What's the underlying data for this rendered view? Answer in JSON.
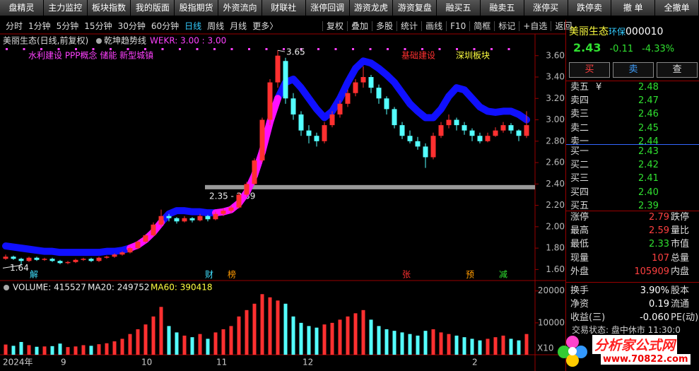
{
  "toolbar": {
    "buttons": [
      "盘精灵",
      "主力监控",
      "板块指数",
      "我的版面",
      "股指期货",
      "外资流向",
      "财联社",
      "涨停回调",
      "游资龙虎",
      "游资复盘",
      "融买五",
      "融卖五",
      "涨停买",
      "跌停卖",
      "撤 单",
      "全撤单"
    ]
  },
  "period_bar": {
    "periods": [
      "分时",
      "1分钟",
      "5分钟",
      "15分钟",
      "30分钟",
      "60分钟",
      "日线",
      "周线",
      "月线",
      "更多〉"
    ],
    "tools": [
      "复权",
      "叠加",
      "多股",
      "统计",
      "画线",
      "F10",
      "简框",
      "标记",
      "+自选",
      "返回"
    ]
  },
  "chart_data": [
    {
      "type": "candlestick",
      "title": "美丽生态(日线,前复权)",
      "indicator": "乾坤趋势线",
      "indicator_value": "WEKR: 3.00 : 3.00",
      "concepts": "水利建设 PPP概念 储能 新型城镇",
      "concept_red": "基础建设",
      "concept_yellow": "深圳板块",
      "up_color": "#ff3030",
      "down_color": "#54ffff",
      "trend_color": "#1010ff",
      "trend_up_color": "#ff10ff",
      "ylim": [
        1.51,
        3.79
      ],
      "yticks": [
        {
          "value": 3.6,
          "label": "3.60"
        },
        {
          "value": 3.4,
          "label": "3.40"
        },
        {
          "value": 3.2,
          "label": "3.20"
        },
        {
          "value": 3.0,
          "label": "3.00"
        },
        {
          "value": 2.8,
          "label": "2.80"
        },
        {
          "value": 2.6,
          "label": "2.60"
        },
        {
          "value": 2.4,
          "label": "2.40"
        },
        {
          "value": 2.2,
          "label": "2.20"
        },
        {
          "value": 2.0,
          "label": "2.00"
        },
        {
          "value": 1.8,
          "label": "1.80"
        },
        {
          "value": 1.6,
          "label": "1.60"
        }
      ],
      "candles": [
        [
          1.7,
          1.74,
          1.69,
          1.72
        ],
        [
          1.72,
          1.73,
          1.69,
          1.7
        ],
        [
          1.7,
          1.71,
          1.64,
          1.68
        ],
        [
          1.68,
          1.72,
          1.67,
          1.71
        ],
        [
          1.71,
          1.72,
          1.68,
          1.69
        ],
        [
          1.69,
          1.71,
          1.68,
          1.7
        ],
        [
          1.7,
          1.71,
          1.67,
          1.68
        ],
        [
          1.68,
          1.69,
          1.65,
          1.66
        ],
        [
          1.66,
          1.68,
          1.65,
          1.67
        ],
        [
          1.67,
          1.7,
          1.66,
          1.69
        ],
        [
          1.69,
          1.71,
          1.68,
          1.7
        ],
        [
          1.7,
          1.71,
          1.67,
          1.68
        ],
        [
          1.68,
          1.72,
          1.67,
          1.71
        ],
        [
          1.71,
          1.73,
          1.7,
          1.72
        ],
        [
          1.72,
          1.75,
          1.71,
          1.74
        ],
        [
          1.74,
          1.77,
          1.73,
          1.76
        ],
        [
          1.76,
          1.81,
          1.75,
          1.8
        ],
        [
          1.8,
          1.87,
          1.79,
          1.86
        ],
        [
          1.86,
          1.93,
          1.85,
          1.92
        ],
        [
          1.92,
          2.04,
          1.91,
          2.02
        ],
        [
          2.02,
          2.16,
          2.0,
          2.1
        ],
        [
          2.1,
          2.12,
          2.05,
          2.08
        ],
        [
          2.08,
          2.09,
          2.03,
          2.05
        ],
        [
          2.05,
          2.1,
          2.04,
          2.08
        ],
        [
          2.08,
          2.09,
          2.04,
          2.06
        ],
        [
          2.06,
          2.12,
          2.05,
          2.1
        ],
        [
          2.1,
          2.11,
          2.05,
          2.07
        ],
        [
          2.07,
          2.14,
          2.06,
          2.12
        ],
        [
          2.12,
          2.17,
          2.1,
          2.15
        ],
        [
          2.15,
          2.2,
          2.13,
          2.18
        ],
        [
          2.18,
          2.32,
          2.17,
          2.3
        ],
        [
          2.3,
          2.42,
          2.28,
          2.4
        ],
        [
          2.4,
          2.64,
          2.39,
          2.62
        ],
        [
          2.62,
          3.02,
          2.6,
          3.0
        ],
        [
          3.0,
          3.38,
          2.95,
          3.35
        ],
        [
          3.35,
          3.65,
          3.3,
          3.6
        ],
        [
          3.55,
          3.58,
          3.15,
          3.2
        ],
        [
          3.2,
          3.25,
          3.0,
          3.05
        ],
        [
          3.05,
          3.08,
          2.85,
          2.9
        ],
        [
          2.9,
          2.95,
          2.78,
          2.85
        ],
        [
          2.85,
          2.88,
          2.75,
          2.8
        ],
        [
          2.8,
          2.98,
          2.78,
          2.95
        ],
        [
          2.95,
          3.08,
          2.93,
          3.05
        ],
        [
          3.05,
          3.18,
          3.02,
          3.15
        ],
        [
          3.15,
          3.28,
          3.12,
          3.25
        ],
        [
          3.25,
          3.38,
          3.22,
          3.35
        ],
        [
          3.35,
          3.5,
          3.3,
          3.4
        ],
        [
          3.4,
          3.42,
          3.25,
          3.3
        ],
        [
          3.3,
          3.33,
          3.15,
          3.2
        ],
        [
          3.2,
          3.22,
          3.05,
          3.1
        ],
        [
          3.1,
          3.12,
          2.92,
          2.95
        ],
        [
          2.95,
          2.98,
          2.82,
          2.85
        ],
        [
          2.85,
          2.9,
          2.78,
          2.8
        ],
        [
          2.8,
          2.84,
          2.72,
          2.75
        ],
        [
          2.75,
          2.78,
          2.55,
          2.65
        ],
        [
          2.65,
          2.88,
          2.63,
          2.85
        ],
        [
          2.85,
          2.98,
          2.83,
          2.95
        ],
        [
          2.95,
          3.05,
          2.92,
          3.0
        ],
        [
          3.0,
          3.02,
          2.9,
          2.95
        ],
        [
          2.95,
          2.98,
          2.86,
          2.9
        ],
        [
          2.9,
          2.92,
          2.8,
          2.85
        ],
        [
          2.85,
          2.88,
          2.78,
          2.8
        ],
        [
          2.8,
          2.88,
          2.79,
          2.85
        ],
        [
          2.85,
          2.93,
          2.84,
          2.9
        ],
        [
          2.9,
          2.98,
          2.88,
          2.95
        ],
        [
          2.95,
          2.97,
          2.87,
          2.9
        ],
        [
          2.9,
          2.91,
          2.8,
          2.85
        ],
        [
          2.85,
          3.08,
          2.83,
          2.95
        ]
      ],
      "trend": [
        1.82,
        1.81,
        1.8,
        1.79,
        1.78,
        1.77,
        1.77,
        1.76,
        1.76,
        1.76,
        1.76,
        1.76,
        1.76,
        1.77,
        1.77,
        1.78,
        1.8,
        1.83,
        1.88,
        1.95,
        2.04,
        2.12,
        2.15,
        2.15,
        2.14,
        2.14,
        2.13,
        2.13,
        2.14,
        2.16,
        2.22,
        2.32,
        2.48,
        2.7,
        2.98,
        3.2,
        3.35,
        3.38,
        3.3,
        3.2,
        3.1,
        3.02,
        3.08,
        3.2,
        3.35,
        3.48,
        3.55,
        3.53,
        3.48,
        3.42,
        3.35,
        3.25,
        3.15,
        3.08,
        3.02,
        3.02,
        3.1,
        3.22,
        3.3,
        3.28,
        3.2,
        3.12,
        3.08,
        3.07,
        3.08,
        3.08,
        3.05,
        3.0
      ],
      "high_label": 3.65,
      "low_label": 1.64,
      "support": {
        "low": 2.35,
        "high": 2.39,
        "label": "2.35 - 2.39"
      },
      "events": [
        "解",
        "财",
        "榜",
        "张",
        "预",
        "减"
      ],
      "x_labels": [
        "2024年",
        "9",
        "10",
        "11",
        "12",
        "2"
      ]
    },
    {
      "type": "bar",
      "title": "VOLUME: 415527",
      "ma20": "MA20: 249752",
      "ma60": "MA60: 390418",
      "multiplier": "X10",
      "ylim": [
        0,
        22600
      ],
      "yticks": [
        10000,
        20000
      ],
      "values": [
        3200,
        2800,
        4000,
        3000,
        2500,
        2600,
        2700,
        3500,
        2400,
        2600,
        3000,
        2800,
        3300,
        3600,
        4200,
        5000,
        6500,
        8000,
        9500,
        12000,
        15000,
        9000,
        7000,
        6000,
        5500,
        6500,
        5000,
        7000,
        8000,
        9000,
        12000,
        14000,
        16000,
        19000,
        18000,
        17000,
        16000,
        12000,
        10000,
        9000,
        8500,
        9500,
        10000,
        11000,
        12000,
        13000,
        14000,
        11000,
        9000,
        8000,
        7500,
        7000,
        6500,
        6000,
        7500,
        8000,
        7000,
        6500,
        6000,
        5500,
        5000,
        4500,
        5000,
        5500,
        6000,
        5000,
        4500,
        6500
      ]
    }
  ],
  "quote": {
    "name": "美丽生态",
    "sector": "环保",
    "code": "000010",
    "price": "2.43",
    "change": "-0.11",
    "change_pct": "-4.33%",
    "buttons": [
      "买",
      "卖",
      "查"
    ],
    "ask_flag": "¥",
    "asks": [
      [
        "卖五",
        "2.48"
      ],
      [
        "卖四",
        "2.47"
      ],
      [
        "卖三",
        "2.46"
      ],
      [
        "卖二",
        "2.45"
      ],
      [
        "卖一",
        "2.44"
      ]
    ],
    "bids": [
      [
        "买一",
        "2.43"
      ],
      [
        "买二",
        "2.42"
      ],
      [
        "买三",
        "2.41"
      ],
      [
        "买四",
        "2.40"
      ],
      [
        "买五",
        "2.39"
      ]
    ],
    "stats": [
      [
        "涨停",
        "2.79",
        "跌停"
      ],
      [
        "最高",
        "2.59",
        "量比"
      ],
      [
        "最低",
        "2.33",
        "市值"
      ],
      [
        "现量",
        "107",
        "总量"
      ],
      [
        "外盘",
        "105909",
        "内盘"
      ],
      [
        "换手",
        "3.90%",
        "股本"
      ],
      [
        "净资",
        "0.19",
        "流通"
      ],
      [
        "收益(三)",
        "-0.060",
        "PE(动)"
      ]
    ],
    "status": "交易状态: 盘中休市 11:30:0"
  },
  "watermark": {
    "title": "分析家公式网",
    "url": "www.70822.com"
  }
}
